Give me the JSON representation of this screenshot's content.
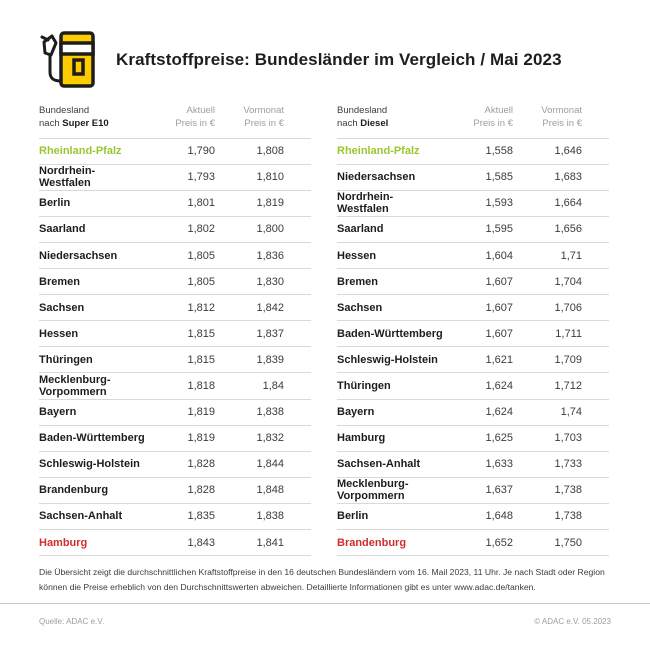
{
  "header": {
    "title": "Kraftstoffpreise: Bundesländer im Vergleich / Mai 2023"
  },
  "colors": {
    "brand_yellow": "#ffcc00",
    "outline_dark": "#1d1d1b",
    "highlight_green": "#9ac632",
    "highlight_red": "#cf2e2e",
    "muted_gray": "#9d9d9c",
    "border_gray": "#d9d9d9"
  },
  "tables": [
    {
      "header": {
        "line1": "Bundesland",
        "line2_prefix": "nach ",
        "line2_bold": "Super E10",
        "col_current_line1": "Aktuell",
        "col_current_line2": "Preis in €",
        "col_previous_line1": "Vormonat",
        "col_previous_line2": "Preis in €"
      },
      "rows": [
        {
          "name": "Rheinland-Pfalz",
          "current": "1,790",
          "previous": "1,808",
          "highlight": "green"
        },
        {
          "name": "Nordrhein-Westfalen",
          "current": "1,793",
          "previous": "1,810",
          "highlight": "none"
        },
        {
          "name": "Berlin",
          "current": "1,801",
          "previous": "1,819",
          "highlight": "none"
        },
        {
          "name": "Saarland",
          "current": "1,802",
          "previous": "1,800",
          "highlight": "none"
        },
        {
          "name": "Niedersachsen",
          "current": "1,805",
          "previous": "1,836",
          "highlight": "none"
        },
        {
          "name": "Bremen",
          "current": "1,805",
          "previous": "1,830",
          "highlight": "none"
        },
        {
          "name": "Sachsen",
          "current": "1,812",
          "previous": "1,842",
          "highlight": "none"
        },
        {
          "name": "Hessen",
          "current": "1,815",
          "previous": "1,837",
          "highlight": "none"
        },
        {
          "name": "Thüringen",
          "current": "1,815",
          "previous": "1,839",
          "highlight": "none"
        },
        {
          "name": "Mecklenburg-Vorpommern",
          "current": "1,818",
          "previous": "1,84",
          "highlight": "none"
        },
        {
          "name": "Bayern",
          "current": "1,819",
          "previous": "1,838",
          "highlight": "none"
        },
        {
          "name": "Baden-Württemberg",
          "current": "1,819",
          "previous": "1,832",
          "highlight": "none"
        },
        {
          "name": "Schleswig-Holstein",
          "current": "1,828",
          "previous": "1,844",
          "highlight": "none"
        },
        {
          "name": "Brandenburg",
          "current": "1,828",
          "previous": "1,848",
          "highlight": "none"
        },
        {
          "name": "Sachsen-Anhalt",
          "current": "1,835",
          "previous": "1,838",
          "highlight": "none"
        },
        {
          "name": "Hamburg",
          "current": "1,843",
          "previous": "1,841",
          "highlight": "red"
        }
      ]
    },
    {
      "header": {
        "line1": "Bundesland",
        "line2_prefix": "nach ",
        "line2_bold": "Diesel",
        "col_current_line1": "Aktuell",
        "col_current_line2": "Preis in €",
        "col_previous_line1": "Vormonat",
        "col_previous_line2": "Preis in €"
      },
      "rows": [
        {
          "name": "Rheinland-Pfalz",
          "current": "1,558",
          "previous": "1,646",
          "highlight": "green"
        },
        {
          "name": "Niedersachsen",
          "current": "1,585",
          "previous": "1,683",
          "highlight": "none"
        },
        {
          "name": "Nordrhein-Westfalen",
          "current": "1,593",
          "previous": "1,664",
          "highlight": "none"
        },
        {
          "name": "Saarland",
          "current": "1,595",
          "previous": "1,656",
          "highlight": "none"
        },
        {
          "name": "Hessen",
          "current": "1,604",
          "previous": "1,71",
          "highlight": "none"
        },
        {
          "name": "Bremen",
          "current": "1,607",
          "previous": "1,704",
          "highlight": "none"
        },
        {
          "name": "Sachsen",
          "current": "1,607",
          "previous": "1,706",
          "highlight": "none"
        },
        {
          "name": "Baden-Württemberg",
          "current": "1,607",
          "previous": "1,711",
          "highlight": "none"
        },
        {
          "name": "Schleswig-Holstein",
          "current": "1,621",
          "previous": "1,709",
          "highlight": "none"
        },
        {
          "name": "Thüringen",
          "current": "1,624",
          "previous": "1,712",
          "highlight": "none"
        },
        {
          "name": "Bayern",
          "current": "1,624",
          "previous": "1,74",
          "highlight": "none"
        },
        {
          "name": "Hamburg",
          "current": "1,625",
          "previous": "1,703",
          "highlight": "none"
        },
        {
          "name": "Sachsen-Anhalt",
          "current": "1,633",
          "previous": "1,733",
          "highlight": "none"
        },
        {
          "name": "Mecklenburg-Vorpommern",
          "current": "1,637",
          "previous": "1,738",
          "highlight": "none"
        },
        {
          "name": "Berlin",
          "current": "1,648",
          "previous": "1,738",
          "highlight": "none"
        },
        {
          "name": "Brandenburg",
          "current": "1,652",
          "previous": "1,750",
          "highlight": "red"
        }
      ]
    }
  ],
  "footnote": {
    "text": "Die Übersicht zeigt die durchschnittlichen Kraftstoffpreise in den 16 deutschen Bundesländern vom 16. Mail 2023, 11 Uhr. Je nach Stadt oder Region können die Preise erheblich von den Durchschnittswerten abweichen. Detaillierte Informationen gibt es unter www.adac.de/tanken."
  },
  "footer": {
    "source": "Quelle: ADAC e.V.",
    "copyright": "© ADAC e.V. 05.2023"
  }
}
